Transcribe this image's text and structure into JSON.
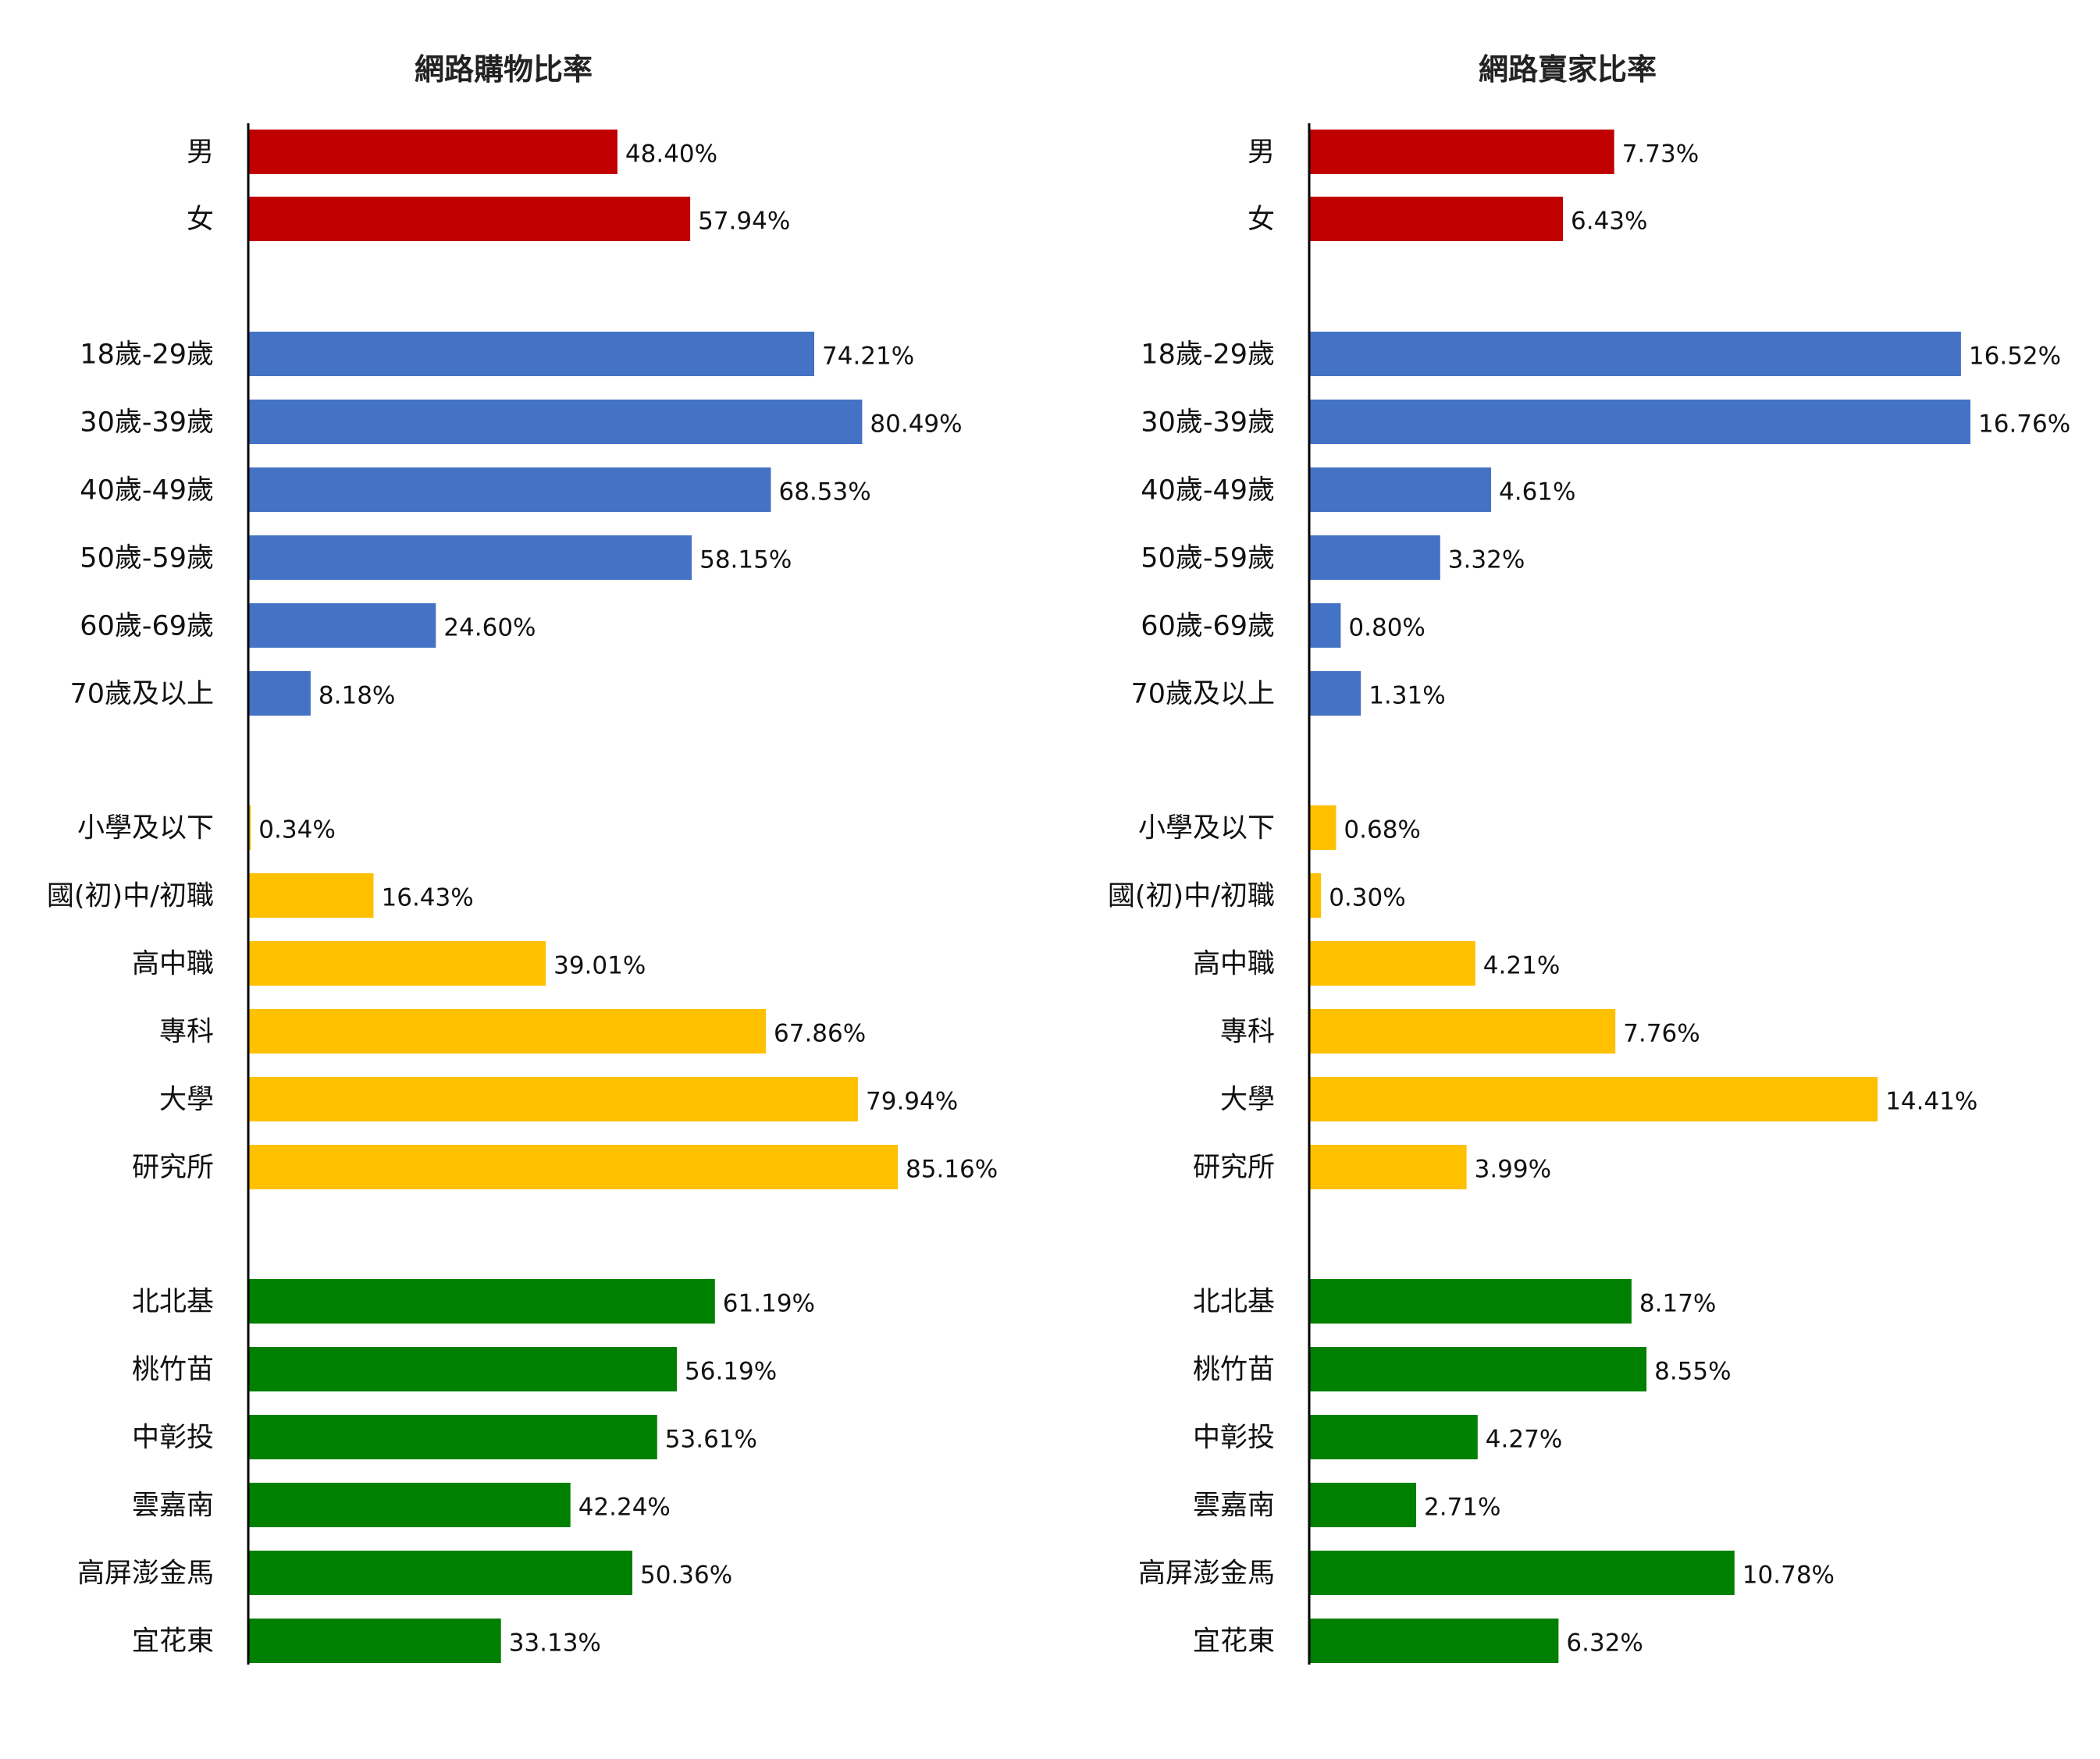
{
  "chart_data": [
    {
      "type": "bar",
      "orientation": "horizontal",
      "title": "網路購物比率",
      "categories": [
        "男",
        "女",
        "18歲-29歲",
        "30歲-39歲",
        "40歲-49歲",
        "50歲-59歲",
        "60歲-69歲",
        "70歲及以上",
        "小學及以下",
        "國(初)中/初職",
        "高中職",
        "專科",
        "大學",
        "研究所",
        "北北基",
        "桃竹苗",
        "中彰投",
        "雲嘉南",
        "高屏澎金馬",
        "宜花東"
      ],
      "values": [
        48.4,
        57.94,
        74.21,
        80.49,
        68.53,
        58.15,
        24.6,
        8.18,
        0.34,
        16.43,
        39.01,
        67.86,
        79.94,
        85.16,
        61.19,
        56.19,
        53.61,
        42.24,
        50.36,
        33.13
      ],
      "value_labels": [
        "48.40%",
        "57.94%",
        "74.21%",
        "80.49%",
        "68.53%",
        "58.15%",
        "24.60%",
        "8.18%",
        "0.34%",
        "16.43%",
        "39.01%",
        "67.86%",
        "79.94%",
        "85.16%",
        "61.19%",
        "56.19%",
        "53.61%",
        "42.24%",
        "50.36%",
        "33.13%"
      ],
      "groups": [
        {
          "start": 0,
          "count": 2,
          "color": "#C00000"
        },
        {
          "start": 2,
          "count": 6,
          "color": "#4472C4"
        },
        {
          "start": 8,
          "count": 6,
          "color": "#FFC000"
        },
        {
          "start": 14,
          "count": 6,
          "color": "#008000"
        }
      ],
      "xlim": [
        0,
        100
      ],
      "grid": false,
      "legend": "none"
    },
    {
      "type": "bar",
      "orientation": "horizontal",
      "title": "網路賣家比率",
      "categories": [
        "男",
        "女",
        "18歲-29歲",
        "30歲-39歲",
        "40歲-49歲",
        "50歲-59歲",
        "60歲-69歲",
        "70歲及以上",
        "小學及以下",
        "國(初)中/初職",
        "高中職",
        "專科",
        "大學",
        "研究所",
        "北北基",
        "桃竹苗",
        "中彰投",
        "雲嘉南",
        "高屏澎金馬",
        "宜花東"
      ],
      "values": [
        7.73,
        6.43,
        16.52,
        16.76,
        4.61,
        3.32,
        0.8,
        1.31,
        0.68,
        0.3,
        4.21,
        7.76,
        14.41,
        3.99,
        8.17,
        8.55,
        4.27,
        2.71,
        10.78,
        6.32
      ],
      "value_labels": [
        "7.73%",
        "6.43%",
        "16.52%",
        "16.76%",
        "4.61%",
        "3.32%",
        "0.80%",
        "1.31%",
        "0.68%",
        "0.30%",
        "4.21%",
        "7.76%",
        "14.41%",
        "3.99%",
        "8.17%",
        "8.55%",
        "4.27%",
        "2.71%",
        "10.78%",
        "6.32%"
      ],
      "groups": [
        {
          "start": 0,
          "count": 2,
          "color": "#C00000"
        },
        {
          "start": 2,
          "count": 6,
          "color": "#4472C4"
        },
        {
          "start": 8,
          "count": 6,
          "color": "#FFC000"
        },
        {
          "start": 14,
          "count": 6,
          "color": "#008000"
        }
      ],
      "xlim": [
        0,
        20
      ],
      "grid": false,
      "legend": "none"
    }
  ]
}
